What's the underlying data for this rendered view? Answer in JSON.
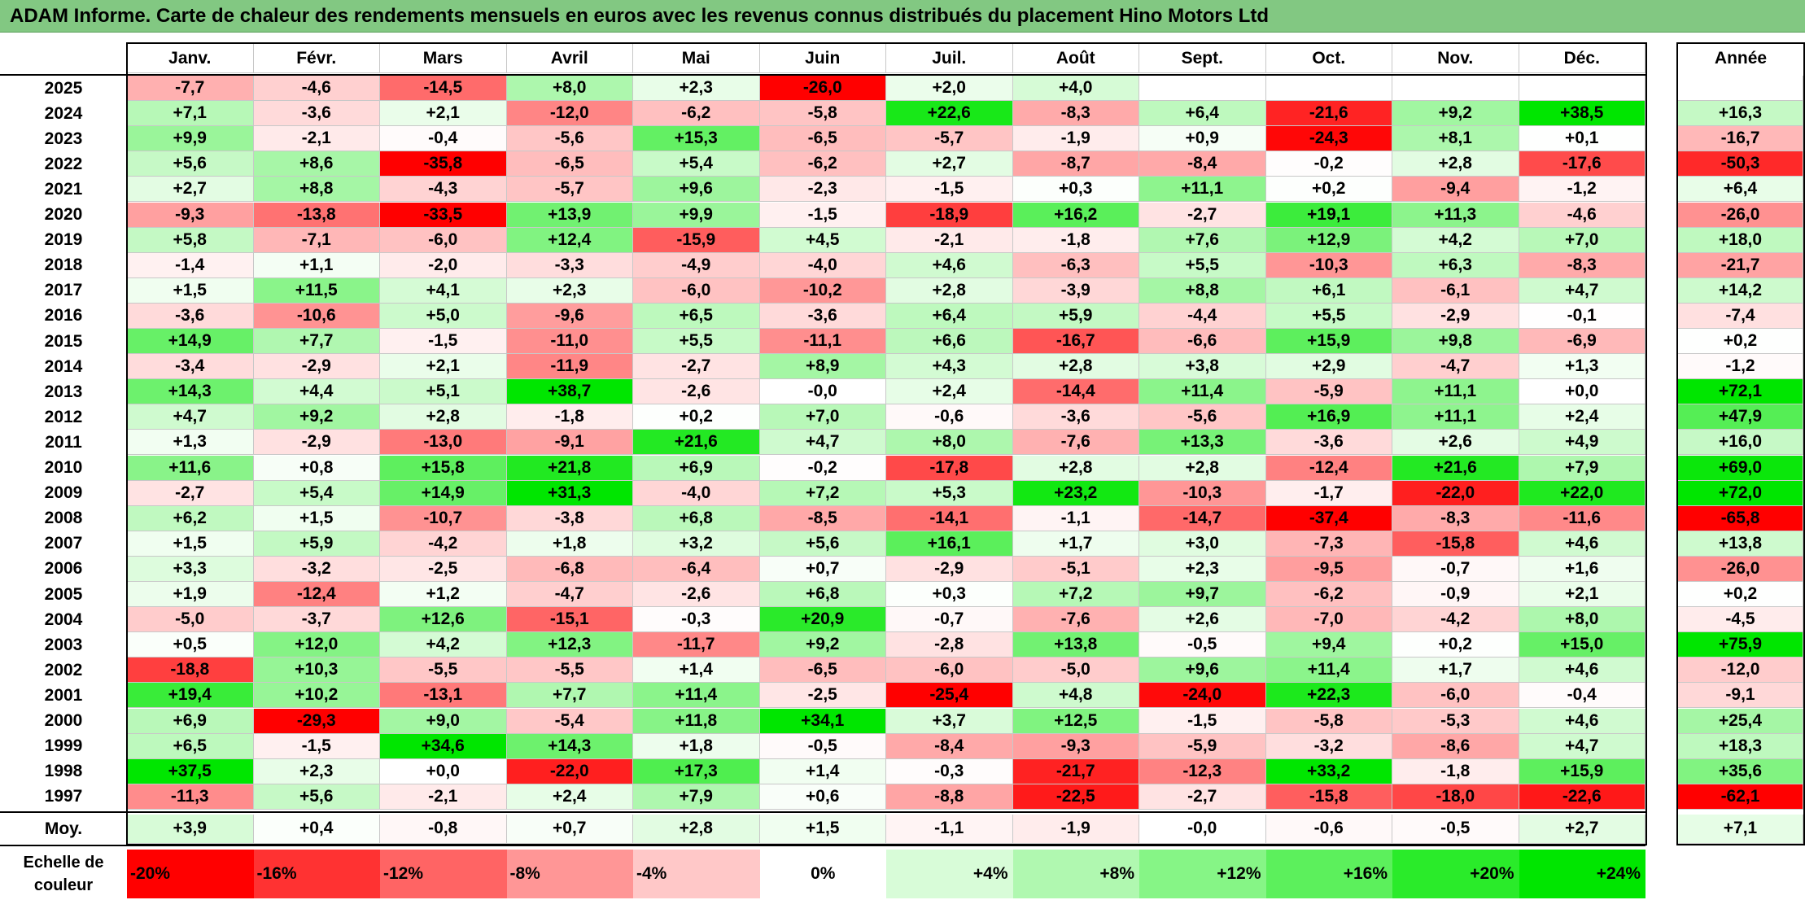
{
  "title": "ADAM Informe. Carte de chaleur des rendements mensuels en euros avec les revenus connus distribués du placement Hino Motors Ltd",
  "chart_data": {
    "type": "heatmap",
    "title": "ADAM Informe. Carte de chaleur des rendements mensuels en euros avec les revenus connus distribués du placement Hino Motors Ltd",
    "columns": [
      "Janv.",
      "Févr.",
      "Mars",
      "Avril",
      "Mai",
      "Juin",
      "Juil.",
      "Août",
      "Sept.",
      "Oct.",
      "Nov.",
      "Déc."
    ],
    "year_column_label": "Année",
    "avg_row_label": "Moy.",
    "rows": [
      {
        "year": "2025",
        "values": [
          "-7,7",
          "-4,6",
          "-14,5",
          "+8,0",
          "+2,3",
          "-26,0",
          "+2,0",
          "+4,0",
          "",
          "",
          "",
          ""
        ],
        "annual": ""
      },
      {
        "year": "2024",
        "values": [
          "+7,1",
          "-3,6",
          "+2,1",
          "-12,0",
          "-6,2",
          "-5,8",
          "+22,6",
          "-8,3",
          "+6,4",
          "-21,6",
          "+9,2",
          "+38,5"
        ],
        "annual": "+16,3"
      },
      {
        "year": "2023",
        "values": [
          "+9,9",
          "-2,1",
          "-0,4",
          "-5,6",
          "+15,3",
          "-6,5",
          "-5,7",
          "-1,9",
          "+0,9",
          "-24,3",
          "+8,1",
          "+0,1"
        ],
        "annual": "-16,7"
      },
      {
        "year": "2022",
        "values": [
          "+5,6",
          "+8,6",
          "-35,8",
          "-6,5",
          "+5,4",
          "-6,2",
          "+2,7",
          "-8,7",
          "-8,4",
          "-0,2",
          "+2,8",
          "-17,6"
        ],
        "annual": "-50,3"
      },
      {
        "year": "2021",
        "values": [
          "+2,7",
          "+8,8",
          "-4,3",
          "-5,7",
          "+9,6",
          "-2,3",
          "-1,5",
          "+0,3",
          "+11,1",
          "+0,2",
          "-9,4",
          "-1,2"
        ],
        "annual": "+6,4"
      },
      {
        "year": "2020",
        "values": [
          "-9,3",
          "-13,8",
          "-33,5",
          "+13,9",
          "+9,9",
          "-1,5",
          "-18,9",
          "+16,2",
          "-2,7",
          "+19,1",
          "+11,3",
          "-4,6"
        ],
        "annual": "-26,0"
      },
      {
        "year": "2019",
        "values": [
          "+5,8",
          "-7,1",
          "-6,0",
          "+12,4",
          "-15,9",
          "+4,5",
          "-2,1",
          "-1,8",
          "+7,6",
          "+12,9",
          "+4,2",
          "+7,0"
        ],
        "annual": "+18,0"
      },
      {
        "year": "2018",
        "values": [
          "-1,4",
          "+1,1",
          "-2,0",
          "-3,3",
          "-4,9",
          "-4,0",
          "+4,6",
          "-6,3",
          "+5,5",
          "-10,3",
          "+6,3",
          "-8,3"
        ],
        "annual": "-21,7"
      },
      {
        "year": "2017",
        "values": [
          "+1,5",
          "+11,5",
          "+4,1",
          "+2,3",
          "-6,0",
          "-10,2",
          "+2,8",
          "-3,9",
          "+8,8",
          "+6,1",
          "-6,1",
          "+4,7"
        ],
        "annual": "+14,2"
      },
      {
        "year": "2016",
        "values": [
          "-3,6",
          "-10,6",
          "+5,0",
          "-9,6",
          "+6,5",
          "-3,6",
          "+6,4",
          "+5,9",
          "-4,4",
          "+5,5",
          "-2,9",
          "-0,1"
        ],
        "annual": "-7,4"
      },
      {
        "year": "2015",
        "values": [
          "+14,9",
          "+7,7",
          "-1,5",
          "-11,0",
          "+5,5",
          "-11,1",
          "+6,6",
          "-16,7",
          "-6,6",
          "+15,9",
          "+9,8",
          "-6,9"
        ],
        "annual": "+0,2"
      },
      {
        "year": "2014",
        "values": [
          "-3,4",
          "-2,9",
          "+2,1",
          "-11,9",
          "-2,7",
          "+8,9",
          "+4,3",
          "+2,8",
          "+3,8",
          "+2,9",
          "-4,7",
          "+1,3"
        ],
        "annual": "-1,2"
      },
      {
        "year": "2013",
        "values": [
          "+14,3",
          "+4,4",
          "+5,1",
          "+38,7",
          "-2,6",
          "-0,0",
          "+2,4",
          "-14,4",
          "+11,4",
          "-5,9",
          "+11,1",
          "+0,0"
        ],
        "annual": "+72,1"
      },
      {
        "year": "2012",
        "values": [
          "+4,7",
          "+9,2",
          "+2,8",
          "-1,8",
          "+0,2",
          "+7,0",
          "-0,6",
          "-3,6",
          "-5,6",
          "+16,9",
          "+11,1",
          "+2,4"
        ],
        "annual": "+47,9"
      },
      {
        "year": "2011",
        "values": [
          "+1,3",
          "-2,9",
          "-13,0",
          "-9,1",
          "+21,6",
          "+4,7",
          "+8,0",
          "-7,6",
          "+13,3",
          "-3,6",
          "+2,6",
          "+4,9"
        ],
        "annual": "+16,0"
      },
      {
        "year": "2010",
        "values": [
          "+11,6",
          "+0,8",
          "+15,8",
          "+21,8",
          "+6,9",
          "-0,2",
          "-17,8",
          "+2,8",
          "+2,8",
          "-12,4",
          "+21,6",
          "+7,9"
        ],
        "annual": "+69,0"
      },
      {
        "year": "2009",
        "values": [
          "-2,7",
          "+5,4",
          "+14,9",
          "+31,3",
          "-4,0",
          "+7,2",
          "+5,3",
          "+23,2",
          "-10,3",
          "-1,7",
          "-22,0",
          "+22,0"
        ],
        "annual": "+72,0"
      },
      {
        "year": "2008",
        "values": [
          "+6,2",
          "+1,5",
          "-10,7",
          "-3,8",
          "+6,8",
          "-8,5",
          "-14,1",
          "-1,1",
          "-14,7",
          "-37,4",
          "-8,3",
          "-11,6"
        ],
        "annual": "-65,8"
      },
      {
        "year": "2007",
        "values": [
          "+1,5",
          "+5,9",
          "-4,2",
          "+1,8",
          "+3,2",
          "+5,6",
          "+16,1",
          "+1,7",
          "+3,0",
          "-7,3",
          "-15,8",
          "+4,6"
        ],
        "annual": "+13,8"
      },
      {
        "year": "2006",
        "values": [
          "+3,3",
          "-3,2",
          "-2,5",
          "-6,8",
          "-6,4",
          "+0,7",
          "-2,9",
          "-5,1",
          "+2,3",
          "-9,5",
          "-0,7",
          "+1,6"
        ],
        "annual": "-26,0"
      },
      {
        "year": "2005",
        "values": [
          "+1,9",
          "-12,4",
          "+1,2",
          "-4,7",
          "-2,6",
          "+6,8",
          "+0,3",
          "+7,2",
          "+9,7",
          "-6,2",
          "-0,9",
          "+2,1"
        ],
        "annual": "+0,2"
      },
      {
        "year": "2004",
        "values": [
          "-5,0",
          "-3,7",
          "+12,6",
          "-15,1",
          "-0,3",
          "+20,9",
          "-0,7",
          "-7,6",
          "+2,6",
          "-7,0",
          "-4,2",
          "+8,0"
        ],
        "annual": "-4,5"
      },
      {
        "year": "2003",
        "values": [
          "+0,5",
          "+12,0",
          "+4,2",
          "+12,3",
          "-11,7",
          "+9,2",
          "-2,8",
          "+13,8",
          "-0,5",
          "+9,4",
          "+0,2",
          "+15,0"
        ],
        "annual": "+75,9"
      },
      {
        "year": "2002",
        "values": [
          "-18,8",
          "+10,3",
          "-5,5",
          "-5,5",
          "+1,4",
          "-6,5",
          "-6,0",
          "-5,0",
          "+9,6",
          "+11,4",
          "+1,7",
          "+4,6"
        ],
        "annual": "-12,0"
      },
      {
        "year": "2001",
        "values": [
          "+19,4",
          "+10,2",
          "-13,1",
          "+7,7",
          "+11,4",
          "-2,5",
          "-25,4",
          "+4,8",
          "-24,0",
          "+22,3",
          "-6,0",
          "-0,4"
        ],
        "annual": "-9,1"
      },
      {
        "year": "2000",
        "values": [
          "+6,9",
          "-29,3",
          "+9,0",
          "-5,4",
          "+11,8",
          "+34,1",
          "+3,7",
          "+12,5",
          "-1,5",
          "-5,8",
          "-5,3",
          "+4,6"
        ],
        "annual": "+25,4"
      },
      {
        "year": "1999",
        "values": [
          "+6,5",
          "-1,5",
          "+34,6",
          "+14,3",
          "+1,8",
          "-0,5",
          "-8,4",
          "-9,3",
          "-5,9",
          "-3,2",
          "-8,6",
          "+4,7"
        ],
        "annual": "+18,3"
      },
      {
        "year": "1998",
        "values": [
          "+37,5",
          "+2,3",
          "+0,0",
          "-22,0",
          "+17,3",
          "+1,4",
          "-0,3",
          "-21,7",
          "-12,3",
          "+33,2",
          "-1,8",
          "+15,9"
        ],
        "annual": "+35,6"
      },
      {
        "year": "1997",
        "values": [
          "-11,3",
          "+5,6",
          "-2,1",
          "+2,4",
          "+7,9",
          "+0,6",
          "-8,8",
          "-22,5",
          "-2,7",
          "-15,8",
          "-18,0",
          "-22,6"
        ],
        "annual": "-62,1"
      }
    ],
    "averages": [
      "+3,9",
      "+0,4",
      "-0,8",
      "+0,7",
      "+2,8",
      "+1,5",
      "-1,1",
      "-1,9",
      "-0,0",
      "-0,6",
      "-0,5",
      "+2,7"
    ],
    "average_annual": "+7,1",
    "color_scale": {
      "label": "Echelle de couleur",
      "stops": [
        {
          "label": "-20%",
          "value": -20,
          "color": "#ff0000",
          "align": "left"
        },
        {
          "label": "-16%",
          "value": -16,
          "color": "#ff3232",
          "align": "left"
        },
        {
          "label": "-12%",
          "value": -12,
          "color": "#ff6464",
          "align": "left"
        },
        {
          "label": "-8%",
          "value": -8,
          "color": "#ff9696",
          "align": "left"
        },
        {
          "label": "-4%",
          "value": -4,
          "color": "#ffc8c8",
          "align": "left"
        },
        {
          "label": "0%",
          "value": 0,
          "color": "#ffffff",
          "align": "center"
        },
        {
          "label": "+4%",
          "value": 4,
          "color": "#d8fcd8",
          "align": "right"
        },
        {
          "label": "+8%",
          "value": 8,
          "color": "#b0f8b0",
          "align": "right"
        },
        {
          "label": "+12%",
          "value": 12,
          "color": "#86f586",
          "align": "right"
        },
        {
          "label": "+16%",
          "value": 16,
          "color": "#5cf05c",
          "align": "right"
        },
        {
          "label": "+20%",
          "value": 20,
          "color": "#2aeb2a",
          "align": "right"
        },
        {
          "label": "+24%",
          "value": 24,
          "color": "#00e600",
          "align": "right"
        }
      ]
    },
    "annual_color_scale": {
      "min": -60,
      "max": 72
    }
  }
}
